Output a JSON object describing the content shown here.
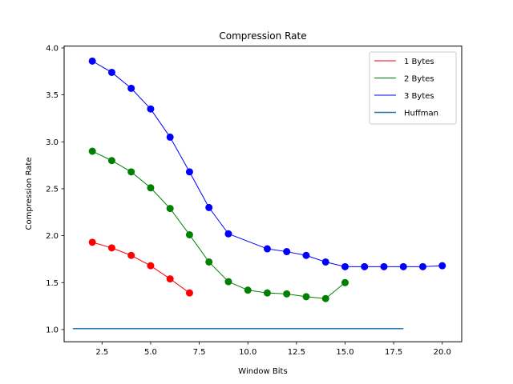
{
  "chart_data": {
    "type": "line",
    "title": "Compression Rate",
    "xlabel": "Window Bits",
    "ylabel": "Compression Rate",
    "xlim": [
      0.55,
      21.0
    ],
    "ylim": [
      0.87,
      4.02
    ],
    "xticks": [
      2.5,
      5.0,
      7.5,
      10.0,
      12.5,
      15.0,
      17.5,
      20.0
    ],
    "xtick_labels": [
      "2.5",
      "5.0",
      "7.5",
      "10.0",
      "12.5",
      "15.0",
      "17.5",
      "20.0"
    ],
    "yticks": [
      1.0,
      1.5,
      2.0,
      2.5,
      3.0,
      3.5,
      4.0
    ],
    "ytick_labels": [
      "1.0",
      "1.5",
      "2.0",
      "2.5",
      "3.0",
      "3.5",
      "4.0"
    ],
    "grid": false,
    "legend_position": "top-right",
    "series": [
      {
        "name": "1 Bytes",
        "color": "#ff0000",
        "markers": true,
        "x": [
          2,
          3,
          4,
          5,
          6,
          7
        ],
        "y": [
          1.93,
          1.87,
          1.79,
          1.68,
          1.54,
          1.39
        ]
      },
      {
        "name": "2 Bytes",
        "color": "#008000",
        "markers": true,
        "x": [
          2,
          3,
          4,
          5,
          6,
          7,
          8,
          9,
          10,
          11,
          12,
          13,
          14,
          15
        ],
        "y": [
          2.9,
          2.8,
          2.68,
          2.51,
          2.29,
          2.01,
          1.72,
          1.51,
          1.42,
          1.39,
          1.38,
          1.35,
          1.33,
          1.5
        ]
      },
      {
        "name": "3 Bytes",
        "color": "#0000ff",
        "markers": true,
        "x": [
          2,
          3,
          4,
          5,
          6,
          7,
          8,
          9,
          11,
          12,
          13,
          14,
          15,
          16,
          17,
          18,
          19,
          20
        ],
        "y": [
          3.86,
          3.74,
          3.57,
          3.35,
          3.05,
          2.68,
          2.3,
          2.02,
          1.86,
          1.83,
          1.79,
          1.72,
          1.67,
          1.67,
          1.67,
          1.67,
          1.67,
          1.68
        ]
      },
      {
        "name": "Huffman",
        "color": "#1f77b4",
        "markers": false,
        "x": [
          1,
          18
        ],
        "y": [
          1.01,
          1.01
        ]
      }
    ]
  }
}
